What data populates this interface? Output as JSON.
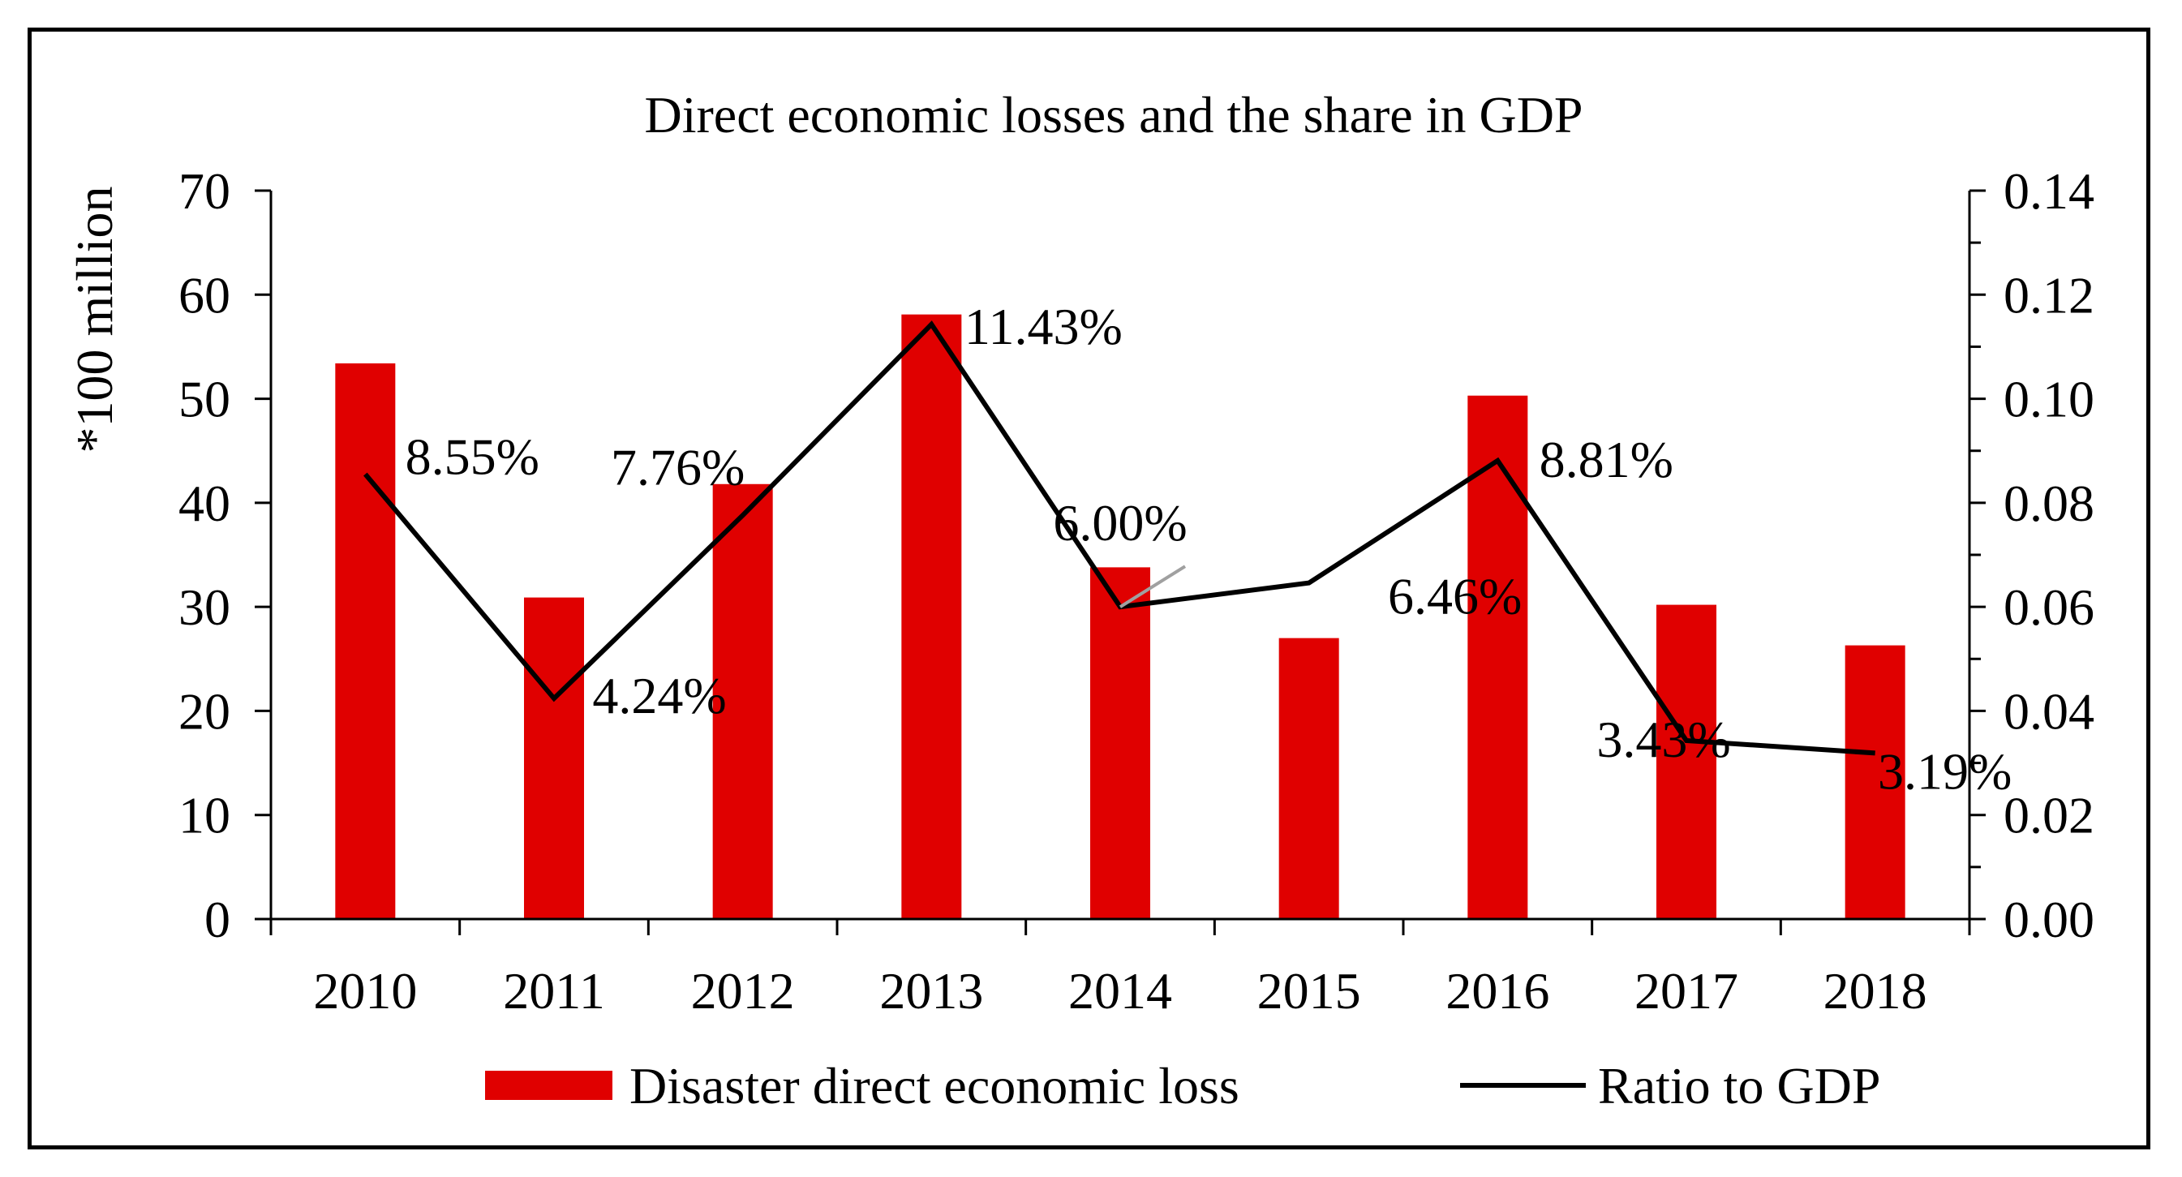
{
  "chart_data": {
    "type": "bar+line",
    "title": "Direct economic losses and the share in GDP",
    "categories": [
      "2010",
      "2011",
      "2012",
      "2013",
      "2014",
      "2015",
      "2016",
      "2017",
      "2018"
    ],
    "series": [
      {
        "name": "Disaster direct economic loss",
        "type": "bar",
        "axis": "left",
        "color": "#e00000",
        "values": [
          53.4,
          30.9,
          41.8,
          58.1,
          33.8,
          27.0,
          50.3,
          30.2,
          26.3
        ]
      },
      {
        "name": "Ratio to GDP",
        "type": "line",
        "axis": "right",
        "color": "#000000",
        "values": [
          0.0855,
          0.0424,
          0.0776,
          0.1143,
          0.06,
          0.0646,
          0.0881,
          0.0343,
          0.0319
        ],
        "labels": [
          "8.55%",
          "4.24%",
          "7.76%",
          "11.43%",
          "6.00%",
          "6.46%",
          "8.81%",
          "3.43%",
          "3.19%"
        ]
      }
    ],
    "ylabel": "*100 million",
    "ylim": [
      0,
      70
    ],
    "yticks": [
      "0",
      "10",
      "20",
      "30",
      "40",
      "50",
      "60",
      "70"
    ],
    "y2lim": [
      0,
      0.14
    ],
    "y2ticks": [
      "0.00",
      "0.02",
      "0.04",
      "0.06",
      "0.08",
      "0.10",
      "0.12",
      "0.14"
    ],
    "legend": "bottom"
  }
}
